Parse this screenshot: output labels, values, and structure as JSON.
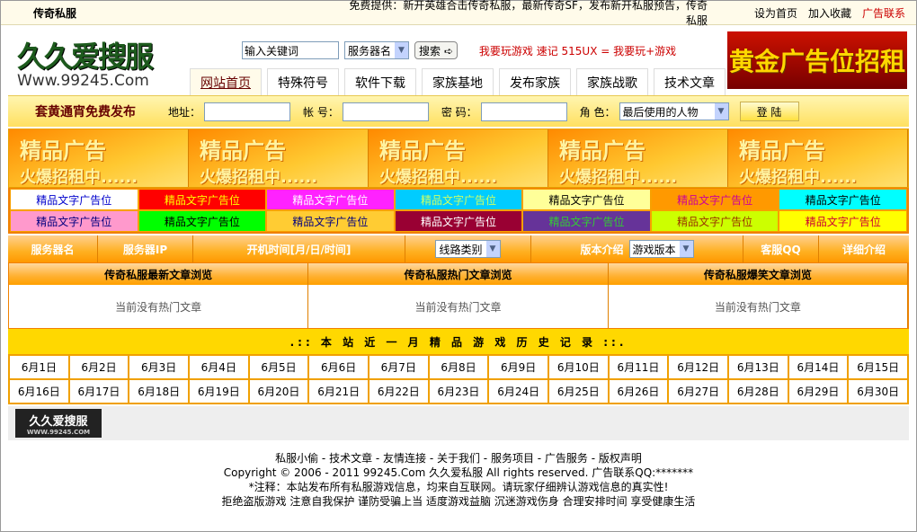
{
  "topbar": {
    "site": "传奇私服",
    "notice": "免费提供：新开英雄合击传奇私服，最新传奇SF，发布新开私服预告，传奇私服",
    "links": [
      "设为首页",
      "加入收藏",
      "广告联系"
    ]
  },
  "logo": {
    "cn": "久久爱搜服",
    "url": "Www.99245.Com"
  },
  "search": {
    "placeholder": "输入关键词",
    "select": "服务器名",
    "button": "搜索 ➪",
    "slogan": "我要玩游戏 速记 515UX = 我要玩+游戏"
  },
  "tabs": [
    "网站首页",
    "特殊符号",
    "软件下载",
    "家族基地",
    "发布家族",
    "家族战歌",
    "技术文章"
  ],
  "gold_ad": "黄金广告位招租",
  "login": {
    "title": "套黄通宵免费发布",
    "address": "地址：",
    "account": "帐 号：",
    "password": "密 码：",
    "role": "角 色：",
    "role_value": "最后使用的人物",
    "button": "登 陆"
  },
  "banners": {
    "line1": "精品广告",
    "line2": "火爆招租中......",
    "count": 5
  },
  "text_ads": [
    {
      "label": "精品文字广告位",
      "bg": "#ffffff",
      "fg": "#0000cc"
    },
    {
      "label": "精品文字广告位",
      "bg": "#ff0000",
      "fg": "#ffff00"
    },
    {
      "label": "精品文字广告位",
      "bg": "#ff22ff",
      "fg": "#ffffff"
    },
    {
      "label": "精品文字广告位",
      "bg": "#00ccff",
      "fg": "#ccff66"
    },
    {
      "label": "精品文字广告位",
      "bg": "#ffff99",
      "fg": "#000000"
    },
    {
      "label": "精品文字广告位",
      "bg": "#ff9900",
      "fg": "#cc0099"
    },
    {
      "label": "精品文字广告位",
      "bg": "#00ffff",
      "fg": "#000000"
    },
    {
      "label": "精品文字广告位",
      "bg": "#ff99cc",
      "fg": "#000080"
    },
    {
      "label": "精品文字广告位",
      "bg": "#00ff00",
      "fg": "#000000"
    },
    {
      "label": "精品文字广告位",
      "bg": "#ffcc33",
      "fg": "#000080"
    },
    {
      "label": "精品文字广告位",
      "bg": "#990033",
      "fg": "#ffffff"
    },
    {
      "label": "精品文字广告位",
      "bg": "#663399",
      "fg": "#33cc33"
    },
    {
      "label": "精品文字广告位",
      "bg": "#ccff00",
      "fg": "#993300"
    },
    {
      "label": "精品文字广告位",
      "bg": "#ffff00",
      "fg": "#cc0033"
    }
  ],
  "filter": {
    "name": "服务器名",
    "ip": "服务器IP",
    "time": "开机时间[月/日/时间]",
    "line": "线路类别",
    "version_label": "版本介绍",
    "version": "游戏版本",
    "qq": "客服QQ",
    "detail": "详细介绍"
  },
  "articles": [
    {
      "title": "传奇私服最新文章浏览",
      "empty": "当前没有热门文章"
    },
    {
      "title": "传奇私服热门文章浏览",
      "empty": "当前没有热门文章"
    },
    {
      "title": "传奇私服爆笑文章浏览",
      "empty": "当前没有热门文章"
    }
  ],
  "history": {
    "title": ".:: 本 站 近 一 月 精 品 游 戏 历 史 记 录 ::.",
    "days": [
      "6月1日",
      "6月2日",
      "6月3日",
      "6月4日",
      "6月5日",
      "6月6日",
      "6月7日",
      "6月8日",
      "6月9日",
      "6月10日",
      "6月11日",
      "6月12日",
      "6月13日",
      "6月14日",
      "6月15日",
      "6月16日",
      "6月17日",
      "6月18日",
      "6月19日",
      "6月20日",
      "6月21日",
      "6月22日",
      "6月23日",
      "6月24日",
      "6月25日",
      "6月26日",
      "6月27日",
      "6月28日",
      "6月29日",
      "6月30日"
    ]
  },
  "footer_logo": {
    "cn": "久久爱搜服",
    "url": "WWW.99245.COM"
  },
  "footer": {
    "links": "私服小偷 - 技术文章 - 友情连接 - 关于我们 - 服务项目 - 广告服务 - 版权声明",
    "copyright": "Copyright © 2006 - 2011 99245.Com 久久爱私服 All rights reserved. 广告联系QQ:*******",
    "note": "*注释：本站发布所有私服游戏信息，均来自互联网。请玩家仔细辨认游戏信息的真实性!",
    "health": "拒绝盗版游戏 注意自我保护 谨防受骗上当 适度游戏益脑 沉迷游戏伤身 合理安排时间 享受健康生活"
  }
}
